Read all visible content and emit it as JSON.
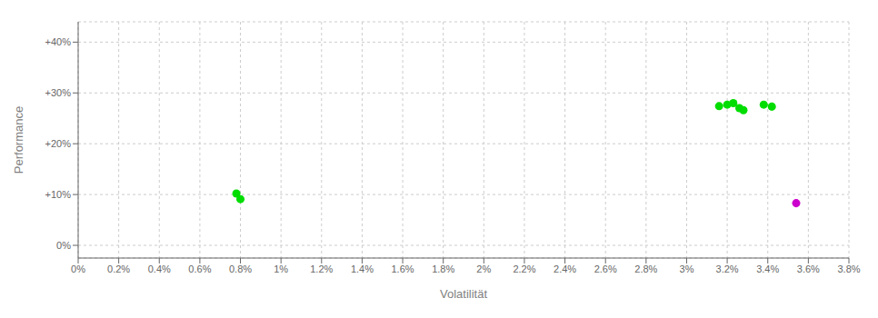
{
  "chart_data": {
    "type": "scatter",
    "xlabel": "Volatilität",
    "ylabel": "Performance",
    "xlim": [
      0.0,
      0.038
    ],
    "ylim": [
      -0.025,
      0.44
    ],
    "xticks": [
      {
        "value": 0.0,
        "label": "0%"
      },
      {
        "value": 0.002,
        "label": "0.2%"
      },
      {
        "value": 0.004,
        "label": "0.4%"
      },
      {
        "value": 0.006,
        "label": "0.6%"
      },
      {
        "value": 0.008,
        "label": "0.8%"
      },
      {
        "value": 0.01,
        "label": "1%"
      },
      {
        "value": 0.012,
        "label": "1.2%"
      },
      {
        "value": 0.014,
        "label": "1.4%"
      },
      {
        "value": 0.016,
        "label": "1.6%"
      },
      {
        "value": 0.018,
        "label": "1.8%"
      },
      {
        "value": 0.02,
        "label": "2%"
      },
      {
        "value": 0.022,
        "label": "2.2%"
      },
      {
        "value": 0.024,
        "label": "2.4%"
      },
      {
        "value": 0.026,
        "label": "2.6%"
      },
      {
        "value": 0.028,
        "label": "2.8%"
      },
      {
        "value": 0.03,
        "label": "3%"
      },
      {
        "value": 0.032,
        "label": "3.2%"
      },
      {
        "value": 0.034,
        "label": "3.4%"
      },
      {
        "value": 0.036,
        "label": "3.6%"
      },
      {
        "value": 0.038,
        "label": "3.8%"
      }
    ],
    "yticks": [
      {
        "value": 0.0,
        "label": "0%"
      },
      {
        "value": 0.1,
        "label": "+10%"
      },
      {
        "value": 0.2,
        "label": "+20%"
      },
      {
        "value": 0.3,
        "label": "+30%"
      },
      {
        "value": 0.4,
        "label": "+40%"
      }
    ],
    "grid": true,
    "series": [
      {
        "color": "#00dd00",
        "x": [
          0.0078,
          0.008,
          0.0316,
          0.032,
          0.0323,
          0.0326,
          0.0328,
          0.0338,
          0.0342
        ],
        "values": [
          0.102,
          0.091,
          0.274,
          0.277,
          0.28,
          0.27,
          0.266,
          0.277,
          0.273
        ]
      },
      {
        "color": "#cc00cc",
        "x": [
          0.0354
        ],
        "values": [
          0.083
        ]
      }
    ]
  }
}
